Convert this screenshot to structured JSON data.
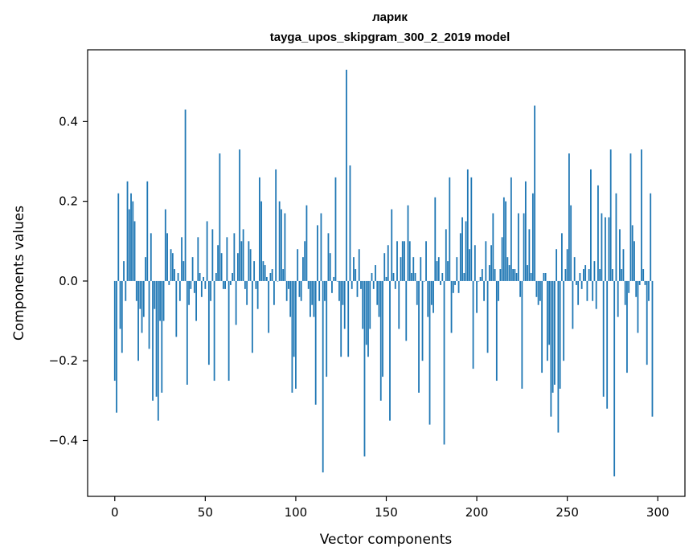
{
  "colors": {
    "bar": "#1f77b4",
    "axis": "#000000",
    "background": "#ffffff"
  },
  "chart_data": {
    "type": "bar",
    "title": "ларик",
    "subtitle": "tayga_upos_skipgram_300_2_2019 model",
    "xlabel": "Vector components",
    "ylabel": "Components values",
    "xlim": [
      -15,
      315
    ],
    "ylim": [
      -0.54,
      0.58
    ],
    "xticks": [
      0,
      50,
      100,
      150,
      200,
      250,
      300
    ],
    "xtick_labels": [
      "0",
      "50",
      "100",
      "150",
      "200",
      "250",
      "300"
    ],
    "yticks": [
      -0.4,
      -0.2,
      0.0,
      0.2,
      0.4
    ],
    "ytick_labels": [
      "−0.4",
      "−0.2",
      "0.0",
      "0.2",
      "0.4"
    ],
    "values": [
      -0.25,
      -0.33,
      0.22,
      -0.12,
      -0.18,
      0.05,
      -0.05,
      0.25,
      0.18,
      0.22,
      0.2,
      0.15,
      -0.05,
      -0.2,
      -0.07,
      -0.13,
      -0.09,
      0.06,
      0.25,
      -0.17,
      0.12,
      -0.3,
      -0.07,
      -0.29,
      -0.35,
      -0.1,
      -0.28,
      -0.1,
      0.18,
      0.12,
      -0.01,
      0.08,
      0.07,
      0.03,
      -0.14,
      0.02,
      -0.05,
      0.11,
      0.05,
      0.43,
      -0.26,
      -0.06,
      -0.02,
      0.06,
      -0.03,
      -0.1,
      0.11,
      0.02,
      -0.04,
      0.01,
      -0.02,
      0.15,
      -0.21,
      -0.05,
      0.13,
      -0.25,
      0.02,
      0.09,
      0.32,
      0.07,
      -0.02,
      -0.02,
      0.11,
      -0.25,
      -0.01,
      0.02,
      0.12,
      -0.11,
      0.07,
      0.33,
      0.1,
      0.13,
      -0.02,
      -0.06,
      0.1,
      0.08,
      -0.18,
      0.05,
      -0.02,
      -0.07,
      0.26,
      0.2,
      0.05,
      0.04,
      0.01,
      -0.13,
      0.02,
      0.03,
      -0.06,
      0.28,
      0.0,
      0.2,
      0.18,
      0.03,
      0.17,
      -0.05,
      -0.02,
      -0.09,
      -0.28,
      -0.19,
      -0.27,
      0.08,
      -0.04,
      -0.05,
      0.06,
      0.1,
      0.19,
      -0.02,
      -0.09,
      -0.06,
      -0.09,
      -0.31,
      0.14,
      -0.05,
      0.17,
      -0.48,
      -0.05,
      -0.24,
      0.12,
      0.07,
      -0.03,
      0.01,
      0.26,
      0.0,
      -0.05,
      -0.19,
      -0.06,
      -0.12,
      0.53,
      -0.19,
      0.29,
      -0.02,
      0.06,
      0.03,
      -0.04,
      0.08,
      -0.02,
      -0.12,
      -0.44,
      -0.16,
      -0.19,
      -0.12,
      0.02,
      -0.02,
      0.04,
      -0.06,
      -0.09,
      -0.3,
      -0.24,
      0.07,
      0.01,
      0.09,
      -0.35,
      0.18,
      0.02,
      -0.02,
      0.1,
      -0.12,
      0.06,
      0.1,
      0.1,
      -0.15,
      0.19,
      0.1,
      0.02,
      0.06,
      0.02,
      -0.06,
      -0.28,
      0.06,
      -0.2,
      0.0,
      0.1,
      -0.09,
      -0.36,
      -0.06,
      -0.08,
      0.21,
      0.05,
      0.06,
      -0.01,
      0.02,
      -0.41,
      0.13,
      0.05,
      0.26,
      -0.13,
      -0.03,
      -0.01,
      0.06,
      -0.03,
      0.12,
      0.16,
      0.02,
      0.15,
      0.28,
      0.08,
      0.26,
      -0.22,
      0.09,
      -0.08,
      0.0,
      0.01,
      0.03,
      -0.05,
      0.1,
      -0.18,
      0.04,
      0.09,
      0.17,
      0.03,
      -0.25,
      -0.05,
      0.03,
      0.11,
      0.21,
      0.2,
      0.06,
      0.04,
      0.26,
      0.03,
      0.03,
      0.02,
      0.17,
      -0.04,
      -0.27,
      0.17,
      0.25,
      0.04,
      0.13,
      0.02,
      0.22,
      0.44,
      -0.04,
      -0.06,
      -0.05,
      -0.23,
      0.02,
      0.02,
      -0.2,
      -0.16,
      -0.34,
      -0.28,
      -0.26,
      0.08,
      -0.38,
      -0.27,
      0.12,
      -0.2,
      0.03,
      0.08,
      0.32,
      0.19,
      -0.12,
      0.06,
      -0.01,
      -0.06,
      0.02,
      -0.02,
      0.03,
      0.04,
      -0.05,
      0.03,
      0.28,
      -0.05,
      0.05,
      -0.07,
      0.24,
      0.03,
      0.17,
      -0.29,
      0.16,
      -0.32,
      0.16,
      0.33,
      0.03,
      -0.49,
      0.22,
      -0.09,
      0.13,
      0.03,
      0.08,
      -0.06,
      -0.23,
      -0.03,
      0.32,
      0.14,
      0.1,
      -0.04,
      -0.13,
      -0.01,
      0.33,
      0.03,
      -0.01,
      -0.21,
      -0.05,
      0.22,
      -0.34
    ]
  }
}
